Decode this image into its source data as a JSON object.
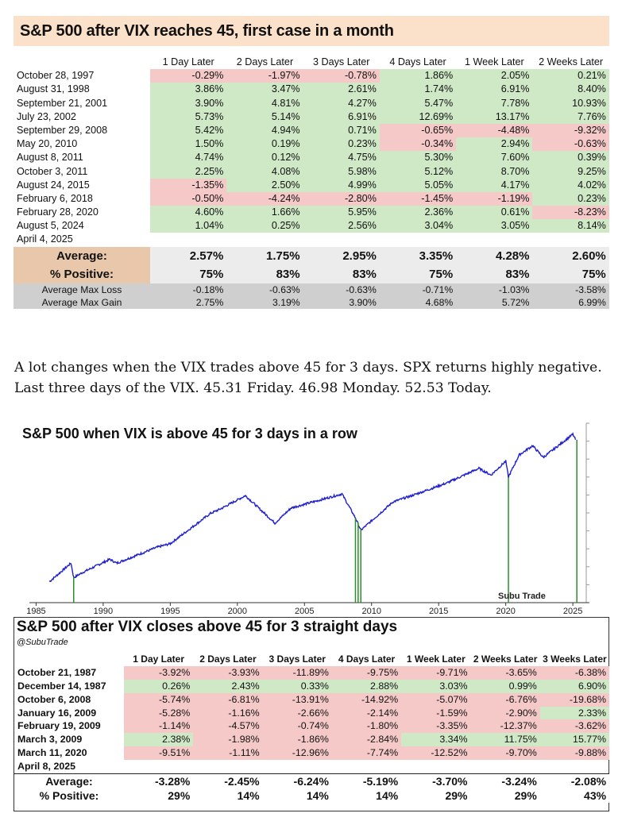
{
  "table1": {
    "title": "S&P 500 after VIX reaches 45, first case in a month",
    "headers": [
      "",
      "1 Day Later",
      "2 Days Later",
      "3 Days Later",
      "4 Days Later",
      "1 Week Later",
      "2 Weeks Later"
    ],
    "rows": [
      {
        "date": "October 28, 1997",
        "values": [
          "-0.29%",
          "-1.97%",
          "-0.78%",
          "1.86%",
          "2.05%",
          "0.21%"
        ]
      },
      {
        "date": "August 31, 1998",
        "values": [
          "3.86%",
          "3.47%",
          "2.61%",
          "1.74%",
          "6.91%",
          "8.40%"
        ]
      },
      {
        "date": "September 21, 2001",
        "values": [
          "3.90%",
          "4.81%",
          "4.27%",
          "5.47%",
          "7.78%",
          "10.93%"
        ]
      },
      {
        "date": "July 23, 2002",
        "values": [
          "5.73%",
          "5.14%",
          "6.91%",
          "12.69%",
          "13.17%",
          "7.76%"
        ]
      },
      {
        "date": "September 29, 2008",
        "values": [
          "5.42%",
          "4.94%",
          "0.71%",
          "-0.65%",
          "-4.48%",
          "-9.32%"
        ]
      },
      {
        "date": "May 20, 2010",
        "values": [
          "1.50%",
          "0.19%",
          "0.23%",
          "-0.34%",
          "2.94%",
          "-0.63%"
        ]
      },
      {
        "date": "August 8, 2011",
        "values": [
          "4.74%",
          "0.12%",
          "4.75%",
          "5.30%",
          "7.60%",
          "0.39%"
        ]
      },
      {
        "date": "October 3, 2011",
        "values": [
          "2.25%",
          "4.08%",
          "5.98%",
          "5.12%",
          "8.70%",
          "9.25%"
        ]
      },
      {
        "date": "August 24, 2015",
        "values": [
          "-1.35%",
          "2.50%",
          "4.99%",
          "5.05%",
          "4.17%",
          "4.02%"
        ]
      },
      {
        "date": "February 6, 2018",
        "values": [
          "-0.50%",
          "-4.24%",
          "-2.80%",
          "-1.45%",
          "-1.19%",
          "0.23%"
        ]
      },
      {
        "date": "February 28, 2020",
        "values": [
          "4.60%",
          "1.66%",
          "5.95%",
          "2.36%",
          "0.61%",
          "-8.23%"
        ]
      },
      {
        "date": "August 5, 2024",
        "values": [
          "1.04%",
          "0.25%",
          "2.56%",
          "3.04%",
          "3.05%",
          "8.14%"
        ]
      },
      {
        "date": "April 4, 2025",
        "values": [
          "",
          "",
          "",
          "",
          "",
          ""
        ]
      }
    ],
    "average": {
      "label": "Average:",
      "values": [
        "2.57%",
        "1.75%",
        "2.95%",
        "3.35%",
        "4.28%",
        "2.60%"
      ]
    },
    "positive": {
      "label": "% Positive:",
      "values": [
        "75%",
        "83%",
        "83%",
        "75%",
        "83%",
        "75%"
      ]
    },
    "max_loss": {
      "label": "Average Max Loss",
      "values": [
        "-0.18%",
        "-0.63%",
        "-0.63%",
        "-0.71%",
        "-1.03%",
        "-3.58%"
      ]
    },
    "max_gain": {
      "label": "Average Max Gain",
      "values": [
        "2.75%",
        "3.19%",
        "3.90%",
        "4.68%",
        "5.72%",
        "6.99%"
      ]
    }
  },
  "paragraph": "A lot changes when the VIX trades above 45 for 3 days. SPX returns highly negative. Last three days of the VIX. 45.31 Friday. 46.98 Monday. 52.53 Today.",
  "chart_data": {
    "type": "line",
    "title": "S&P 500 when VIX is above 45 for 3 days in a row",
    "watermark": "Subu Trade",
    "x_ticks": [
      "1985",
      "1990",
      "1995",
      "2000",
      "2005",
      "2010",
      "2015",
      "2020",
      "2025"
    ],
    "xlim": [
      1984.5,
      2026
    ],
    "log_scale": true,
    "series": [
      {
        "x": [
          1986.0,
          1987.6,
          1987.8,
          1988.5,
          1990.5,
          1991.0,
          1994.0,
          1995.0,
          1998.0,
          1998.7,
          2000.6,
          2002.8,
          2004.0,
          2007.8,
          2008.8,
          2009.2,
          2011.6,
          2013.0,
          2015.6,
          2018.0,
          2018.9,
          2020.0,
          2020.2,
          2021.0,
          2022.0,
          2022.8,
          2024.0,
          2025.0,
          2025.2
        ],
        "y": [
          210,
          320,
          230,
          260,
          350,
          320,
          460,
          500,
          1000,
          1100,
          1500,
          800,
          1130,
          1560,
          900,
          680,
          1300,
          1500,
          2000,
          2800,
          2400,
          3300,
          2300,
          3800,
          4700,
          3600,
          4800,
          6100,
          5400
        ],
        "color": "#1f1fd0"
      }
    ],
    "highlight_dates": [
      1987.8,
      2008.8,
      2009.0,
      2009.2,
      2020.2,
      2025.3
    ],
    "highlight_color": "#2e8b2e"
  },
  "table2": {
    "title": "S&P 500 after VIX closes above 45 for 3 straight days",
    "subtitle": "@SubuTrade",
    "headers": [
      "",
      "1 Day Later",
      "2 Days Later",
      "3 Days Later",
      "4 Days Later",
      "1 Week Later",
      "2 Weeks Later",
      "3 Weeks Later"
    ],
    "rows": [
      {
        "date": "October 21, 1987",
        "values": [
          "-3.92%",
          "-3.93%",
          "-11.89%",
          "-9.75%",
          "-9.71%",
          "-3.65%",
          "-6.38%"
        ]
      },
      {
        "date": "December 14, 1987",
        "values": [
          "0.26%",
          "2.43%",
          "0.33%",
          "2.88%",
          "3.03%",
          "0.99%",
          "6.90%"
        ]
      },
      {
        "date": "October 6, 2008",
        "values": [
          "-5.74%",
          "-6.81%",
          "-13.91%",
          "-14.92%",
          "-5.07%",
          "-6.76%",
          "-19.68%"
        ]
      },
      {
        "date": "January 16, 2009",
        "values": [
          "-5.28%",
          "-1.16%",
          "-2.66%",
          "-2.14%",
          "-1.59%",
          "-2.90%",
          "2.33%"
        ]
      },
      {
        "date": "February 19, 2009",
        "values": [
          "-1.14%",
          "-4.57%",
          "-0.74%",
          "-1.80%",
          "-3.35%",
          "-12.37%",
          "-3.62%"
        ]
      },
      {
        "date": "March 3, 2009",
        "values": [
          "2.38%",
          "-1.98%",
          "-1.86%",
          "-2.84%",
          "3.34%",
          "11.75%",
          "15.77%"
        ]
      },
      {
        "date": "March 11, 2020",
        "values": [
          "-9.51%",
          "-1.11%",
          "-12.96%",
          "-7.74%",
          "-12.52%",
          "-9.70%",
          "-9.88%"
        ]
      },
      {
        "date": "April 8, 2025",
        "values": [
          "",
          "",
          "",
          "",
          "",
          "",
          ""
        ]
      }
    ],
    "average": {
      "label": "Average:",
      "values": [
        "-3.28%",
        "-2.45%",
        "-6.24%",
        "-5.19%",
        "-3.70%",
        "-3.24%",
        "-2.08%"
      ]
    },
    "positive": {
      "label": "% Positive:",
      "values": [
        "29%",
        "14%",
        "14%",
        "14%",
        "29%",
        "29%",
        "43%"
      ]
    }
  }
}
